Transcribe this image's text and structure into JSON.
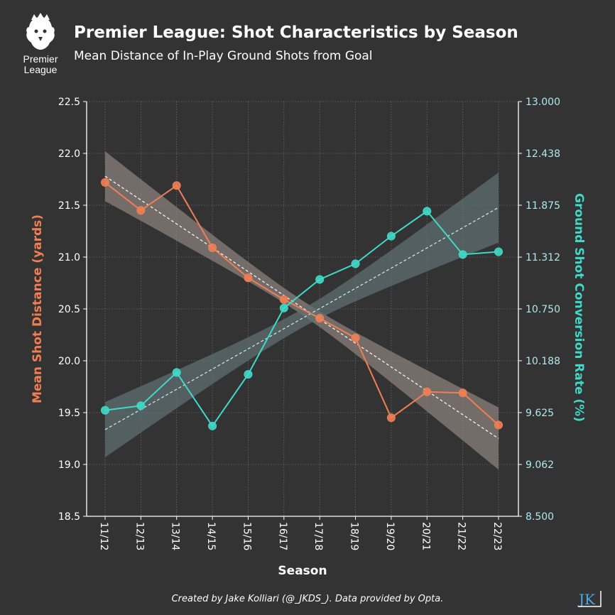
{
  "header": {
    "logo_text_line1": "Premier",
    "logo_text_line2": "League",
    "title": "Premier League: Shot Characteristics by Season",
    "subtitle": "Mean Distance of In-Play Ground Shots from Goal"
  },
  "footer": {
    "credit": "Created by Jake Kolliari (@_JKDS_). Data provided by Opta.",
    "logo_text": "JK"
  },
  "chart_data": {
    "type": "line",
    "xlabel": "Season",
    "ylabel_left": "Mean Shot Distance (yards)",
    "ylabel_right": "Ground Shot Conversion Rate (%)",
    "categories": [
      "11/12",
      "12/13",
      "13/14",
      "14/15",
      "15/16",
      "16/17",
      "17/18",
      "18/19",
      "19/20",
      "20/21",
      "21/22",
      "22/23"
    ],
    "ylim_left": [
      18.5,
      22.5
    ],
    "yticks_left": [
      "18.5",
      "19.0",
      "19.5",
      "20.0",
      "20.5",
      "21.0",
      "21.5",
      "22.0",
      "22.5"
    ],
    "ylim_right": [
      8.5,
      13.0
    ],
    "yticks_right": [
      "8.500",
      "9.062",
      "9.625",
      "10.188",
      "10.750",
      "11.312",
      "11.875",
      "12.438",
      "13.000"
    ],
    "grid": true,
    "series": [
      {
        "axis": "left",
        "color": "#f07f55",
        "values": [
          21.72,
          21.45,
          21.69,
          21.09,
          20.8,
          20.59,
          20.41,
          20.22,
          19.45,
          19.7,
          19.69,
          19.38
        ],
        "trend": [
          21.78,
          19.25
        ],
        "band_half_width_ends": [
          0.24,
          0.3
        ],
        "band_half_width_mid": 0.07
      },
      {
        "axis": "right",
        "color": "#40d9c8",
        "values": [
          9.65,
          9.7,
          10.06,
          9.48,
          10.04,
          10.76,
          11.07,
          11.24,
          11.54,
          11.81,
          11.34,
          11.37
        ],
        "trend": [
          9.44,
          11.85
        ],
        "band_half_width_ends": [
          0.3,
          0.38
        ],
        "band_half_width_mid": 0.1
      }
    ]
  },
  "colors": {
    "background": "#333333",
    "left_axis_label": "#f07f55",
    "right_axis_label": "#40d9c8",
    "right_tick_labels": "#aee8ee",
    "band_left": "#8a807b",
    "band_right": "#5f6f72"
  }
}
